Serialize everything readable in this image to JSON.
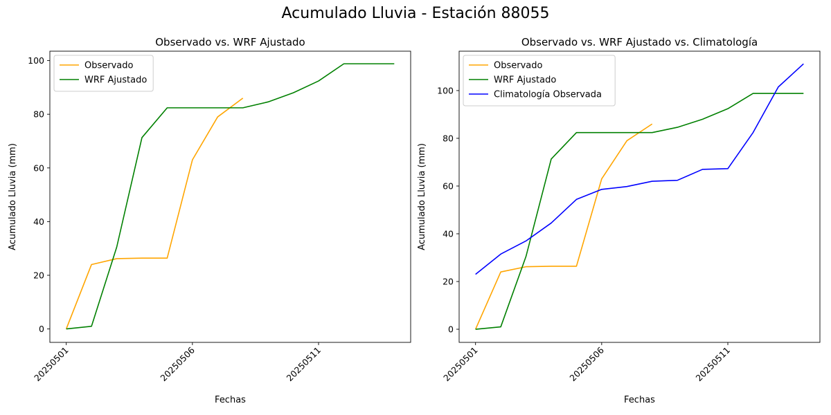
{
  "figure_title": "Acumulado Lluvia - Estación 88055",
  "colors": {
    "observado": "#FFA500",
    "wrf": "#008000",
    "climatologia": "#0000FF"
  },
  "chart_data": [
    {
      "type": "line",
      "title": "Observado vs. WRF Ajustado",
      "xlabel": "Fechas",
      "ylabel": "Acumulado Lluvia (mm)",
      "x_ticks": [
        "20250501",
        "20250506",
        "20250511"
      ],
      "y_ticks": [
        0,
        20,
        40,
        60,
        80,
        100
      ],
      "ylim": [
        -5,
        103.5
      ],
      "legend_position": "top-left",
      "grid": false,
      "series": [
        {
          "name": "Observado",
          "color": "#FFA500",
          "x": [
            "20250501",
            "20250502",
            "20250503",
            "20250504",
            "20250505",
            "20250506",
            "20250507",
            "20250508"
          ],
          "values": [
            0,
            24,
            26.2,
            26.4,
            26.4,
            63,
            79,
            86
          ]
        },
        {
          "name": "WRF Ajustado",
          "color": "#008000",
          "x": [
            "20250501",
            "20250502",
            "20250503",
            "20250504",
            "20250505",
            "20250506",
            "20250507",
            "20250508",
            "20250509",
            "20250510",
            "20250511",
            "20250512",
            "20250513",
            "20250514"
          ],
          "values": [
            0,
            1,
            30.5,
            71.3,
            82.4,
            82.4,
            82.4,
            82.4,
            84.6,
            88,
            92.4,
            98.8,
            98.8,
            98.8
          ]
        }
      ]
    },
    {
      "type": "line",
      "title": "Observado vs. WRF Ajustado vs. Climatología",
      "xlabel": "Fechas",
      "ylabel": "Acumulado Lluvia (mm)",
      "x_ticks": [
        "20250501",
        "20250506",
        "20250511"
      ],
      "y_ticks": [
        0,
        20,
        40,
        60,
        80,
        100
      ],
      "ylim": [
        -5.5,
        116.5
      ],
      "legend_position": "top-left",
      "grid": false,
      "series": [
        {
          "name": "Observado",
          "color": "#FFA500",
          "x": [
            "20250501",
            "20250502",
            "20250503",
            "20250504",
            "20250505",
            "20250506",
            "20250507",
            "20250508"
          ],
          "values": [
            0,
            24,
            26.2,
            26.4,
            26.4,
            63,
            79,
            86
          ]
        },
        {
          "name": "WRF Ajustado",
          "color": "#008000",
          "x": [
            "20250501",
            "20250502",
            "20250503",
            "20250504",
            "20250505",
            "20250506",
            "20250507",
            "20250508",
            "20250509",
            "20250510",
            "20250511",
            "20250512",
            "20250513",
            "20250514"
          ],
          "values": [
            0,
            1,
            30.5,
            71.3,
            82.4,
            82.4,
            82.4,
            82.4,
            84.6,
            88,
            92.4,
            98.8,
            98.8,
            98.8
          ]
        },
        {
          "name": "Climatología Observada",
          "color": "#0000FF",
          "x": [
            "20250501",
            "20250502",
            "20250503",
            "20250504",
            "20250505",
            "20250506",
            "20250507",
            "20250508",
            "20250509",
            "20250510",
            "20250511",
            "20250512",
            "20250513",
            "20250514"
          ],
          "values": [
            23,
            31.5,
            37,
            44.5,
            54.4,
            58.6,
            59.8,
            62,
            62.4,
            67,
            67.3,
            82.4,
            101.5,
            111.2
          ]
        }
      ]
    }
  ]
}
